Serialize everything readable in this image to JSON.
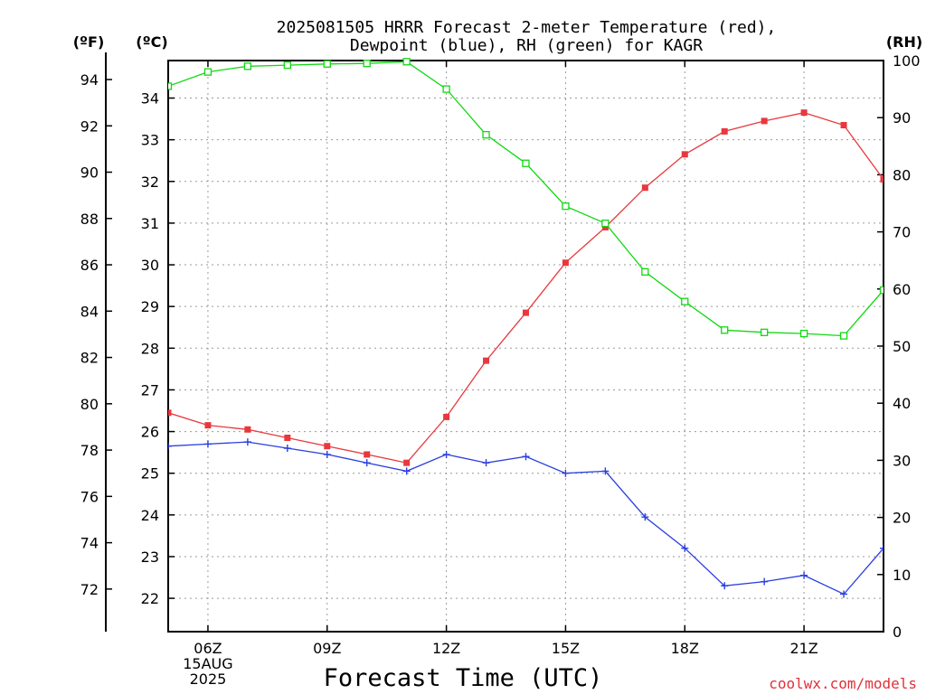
{
  "chart_data": {
    "type": "line",
    "title_line1": "2025081505 HRRR Forecast 2-meter Temperature (red),",
    "title_line2": "Dewpoint (blue), RH (green) for KAGR",
    "xlabel": "Forecast Time (UTC)",
    "credit": "coolwx.com/models",
    "unit_left_f": "(ºF)",
    "unit_left_c": "(ºC)",
    "unit_right": "(RH)",
    "x_hours": [
      5,
      6,
      7,
      8,
      9,
      10,
      11,
      12,
      13,
      14,
      15,
      16,
      17,
      18,
      19,
      20,
      21,
      22,
      23
    ],
    "x_ticks": [
      {
        "hour": 6,
        "lines": [
          "06Z",
          "15AUG",
          "2025"
        ]
      },
      {
        "hour": 9,
        "lines": [
          "09Z"
        ]
      },
      {
        "hour": 12,
        "lines": [
          "12Z"
        ]
      },
      {
        "hour": 15,
        "lines": [
          "15Z"
        ]
      },
      {
        "hour": 18,
        "lines": [
          "18Z"
        ]
      },
      {
        "hour": 21,
        "lines": [
          "21Z"
        ]
      }
    ],
    "xlim": [
      5,
      23
    ],
    "ylim_c": [
      21.2,
      34.9
    ],
    "ylim_rh": [
      0,
      100
    ],
    "f_ticks": [
      72,
      74,
      76,
      78,
      80,
      82,
      84,
      86,
      88,
      90,
      92,
      94
    ],
    "c_ticks": [
      22,
      23,
      24,
      25,
      26,
      27,
      28,
      29,
      30,
      31,
      32,
      33,
      34
    ],
    "rh_ticks": [
      0,
      10,
      20,
      30,
      40,
      50,
      60,
      70,
      80,
      90,
      100
    ],
    "grid": true,
    "series": [
      {
        "name": "Temperature",
        "color": "#e8383d",
        "marker": "filled-square",
        "axis": "c",
        "values": [
          26.45,
          26.15,
          26.05,
          25.85,
          25.65,
          25.45,
          25.25,
          26.35,
          27.7,
          28.85,
          30.05,
          30.9,
          31.85,
          32.65,
          33.2,
          33.45,
          33.65,
          33.35,
          32.05
        ]
      },
      {
        "name": "Dewpoint",
        "color": "#2a3fe0",
        "marker": "plus",
        "axis": "c",
        "values": [
          25.65,
          25.7,
          25.75,
          25.6,
          25.45,
          25.25,
          25.05,
          25.45,
          25.25,
          25.4,
          25.0,
          25.05,
          23.95,
          23.2,
          22.3,
          22.4,
          22.55,
          22.1,
          23.2
        ]
      },
      {
        "name": "RH",
        "color": "#12d812",
        "marker": "open-square",
        "axis": "rh",
        "values": [
          95.5,
          98,
          99,
          99.2,
          99.4,
          99.5,
          99.8,
          95,
          87,
          82,
          74.5,
          71.5,
          63,
          57.8,
          52.8,
          52.4,
          52.2,
          51.8,
          59.8
        ]
      }
    ]
  }
}
